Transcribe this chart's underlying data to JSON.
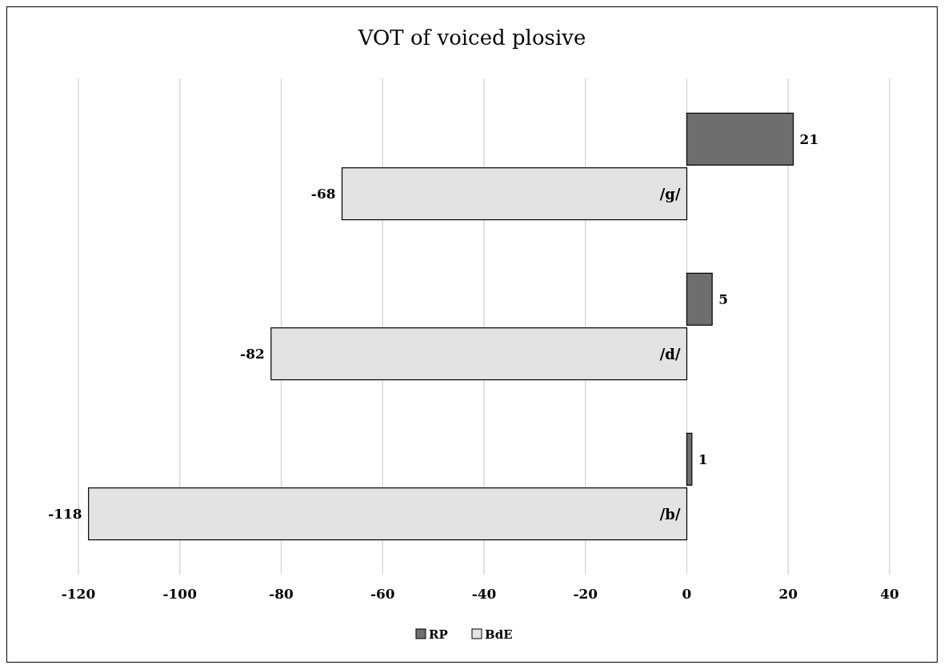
{
  "chart_data": {
    "type": "bar",
    "orientation": "horizontal",
    "title": "VOT of voiced plosive",
    "categories": [
      "/g/",
      "/d/",
      "/b/"
    ],
    "series": [
      {
        "name": "RP",
        "color": "#6e6e6e",
        "values": [
          21,
          5,
          1
        ]
      },
      {
        "name": "BdE",
        "color": "#e3e3e3",
        "values": [
          -68,
          -82,
          -118
        ]
      }
    ],
    "xlim": [
      -120,
      40
    ],
    "xticks": [
      -120,
      -100,
      -80,
      -60,
      -40,
      -20,
      0,
      20,
      40
    ],
    "grid": "x",
    "legend": "bottom",
    "data_labels": true
  }
}
